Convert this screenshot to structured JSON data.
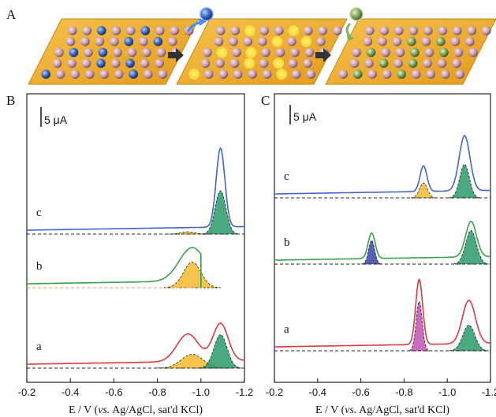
{
  "panel_labels": {
    "A": "A",
    "B": "B",
    "C": "C"
  },
  "schematic": {
    "steps": [
      "surface with adsorbed species",
      "vacancies after stripping",
      "surface with second species"
    ],
    "colors": {
      "gold": "#f2b631",
      "pink_atom": "#c89aa8",
      "blue_atom": "#3a64b8",
      "green_atom": "#7ea15a",
      "arrow": "#333333"
    }
  },
  "xlabel": {
    "prefix": "E / V (",
    "italic": "vs.",
    "suffix": " Ag/AgCl, sat'd KCl)"
  },
  "chart_data": [
    {
      "type": "line",
      "panel": "B",
      "x_ticks": [
        "-0.2",
        "-0.4",
        "-0.6",
        "-0.8",
        "-1.0",
        "-1.2"
      ],
      "xlim": [
        -0.2,
        -1.2
      ],
      "scale_bar": "5 μA",
      "curve_labels": [
        "a",
        "b",
        "c"
      ],
      "series": [
        {
          "name": "a",
          "color": "#d93b3b",
          "baseline": 462,
          "peaks": [
            {
              "x": -0.94,
              "height": 7.0,
              "width": 0.05
            },
            {
              "x": -1.09,
              "height": 9.5,
              "width": 0.035
            }
          ],
          "fills": [
            {
              "x": -0.96,
              "height": 3.5,
              "width": 0.05,
              "color": "#f5b82e"
            },
            {
              "x": -1.09,
              "height": 8.5,
              "width": 0.03,
              "color": "#2a9a6a"
            }
          ]
        },
        {
          "name": "b",
          "color": "#3aa04a",
          "baseline": 360,
          "peaks": [
            {
              "x": -0.96,
              "height": 8.5,
              "width": 0.06
            }
          ],
          "cutoff": -1.0,
          "fills": [
            {
              "x": -0.96,
              "height": 6.5,
              "width": 0.04,
              "color": "#f5b82e"
            }
          ]
        },
        {
          "name": "c",
          "color": "#4464c4",
          "baseline": 292,
          "peaks": [
            {
              "x": -1.09,
              "height": 20.0,
              "width": 0.02
            }
          ],
          "fills": [
            {
              "x": -0.94,
              "height": 0.6,
              "width": 0.03,
              "color": "#f5b82e"
            },
            {
              "x": -1.09,
              "height": 11.0,
              "width": 0.025,
              "color": "#2a9a6a"
            }
          ]
        }
      ]
    },
    {
      "type": "line",
      "panel": "C",
      "x_ticks": [
        "-0.2",
        "-0.4",
        "-0.6",
        "-0.8",
        "-1.0",
        "-1.2"
      ],
      "xlim": [
        -0.2,
        -1.2
      ],
      "scale_bar": "5 μA",
      "curve_labels": [
        "a",
        "b",
        "c"
      ],
      "series": [
        {
          "name": "a",
          "color": "#d93b3b",
          "baseline": 440,
          "peaks": [
            {
              "x": -0.87,
              "height": 16.5,
              "width": 0.016
            },
            {
              "x": -1.1,
              "height": 11.0,
              "width": 0.03
            }
          ],
          "fills": [
            {
              "x": -0.87,
              "height": 12.5,
              "width": 0.014,
              "color": "#c454b4"
            },
            {
              "x": -1.1,
              "height": 6.5,
              "width": 0.028,
              "color": "#2a9a6a"
            }
          ]
        },
        {
          "name": "b",
          "color": "#3aa04a",
          "baseline": 330,
          "peaks": [
            {
              "x": -0.65,
              "height": 6.5,
              "width": 0.016
            },
            {
              "x": -1.11,
              "height": 9.0,
              "width": 0.025
            }
          ],
          "fills": [
            {
              "x": -0.65,
              "height": 6.0,
              "width": 0.014,
              "color": "#3a44a8"
            },
            {
              "x": -1.11,
              "height": 8.5,
              "width": 0.025,
              "color": "#2a9a6a"
            }
          ]
        },
        {
          "name": "c",
          "color": "#4464c4",
          "baseline": 246,
          "peaks": [
            {
              "x": -0.89,
              "height": 6.5,
              "width": 0.016
            },
            {
              "x": -1.08,
              "height": 14.0,
              "width": 0.025
            }
          ],
          "fills": [
            {
              "x": -0.89,
              "height": 3.8,
              "width": 0.018,
              "color": "#f5b82e"
            },
            {
              "x": -1.08,
              "height": 8.5,
              "width": 0.022,
              "color": "#2a9a6a"
            }
          ]
        }
      ]
    }
  ]
}
